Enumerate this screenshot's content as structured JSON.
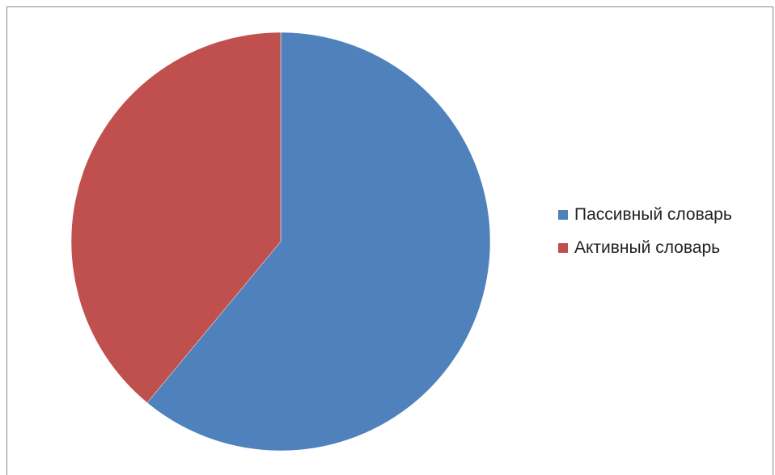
{
  "chart_data": {
    "type": "pie",
    "title": "",
    "slices": [
      {
        "label": "Пассивный словарь",
        "value": 61,
        "color": "#4F81BD"
      },
      {
        "label": "Активный словарь",
        "value": 39,
        "color": "#C0504D"
      }
    ],
    "legend": "right",
    "start_angle": "top, clockwise"
  },
  "legend": {
    "items": [
      {
        "label": "Пассивный словарь",
        "color": "#4F81BD"
      },
      {
        "label": "Активный словарь",
        "color": "#C0504D"
      }
    ]
  }
}
